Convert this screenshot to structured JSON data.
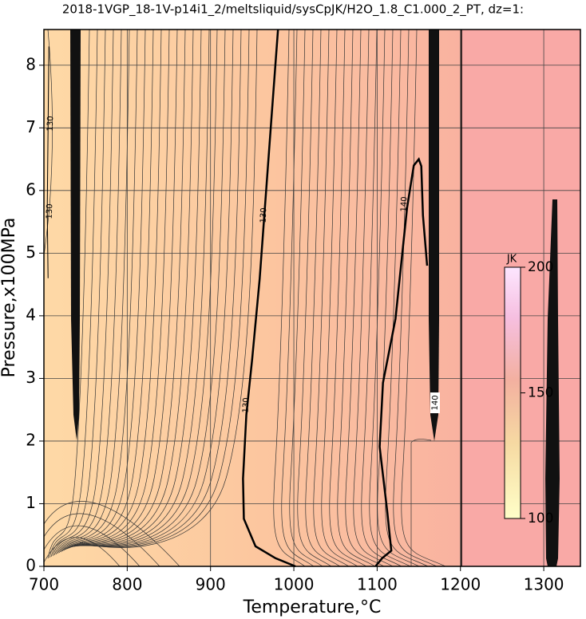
{
  "chart_data": {
    "type": "contour",
    "title": "2018-1VGP_18-1V-p14i1_2/meltsliquid/sysCpJK/H2O_1.8_C1.000_2_PT, dz=1:",
    "x_label": "Temperature,°C",
    "y_label": "Pressure,x100MPa",
    "xlim": [
      700,
      1344
    ],
    "ylim": [
      0,
      8.57
    ],
    "xticks": [
      700,
      800,
      900,
      1000,
      1100,
      1200,
      1300
    ],
    "yticks": [
      0,
      1,
      2,
      3,
      4,
      5,
      6,
      7,
      8
    ],
    "grid": true,
    "contours": [
      {
        "level": 130,
        "x": [
          981,
          973,
          966,
          959,
          950,
          943,
          939,
          940,
          954,
          978,
          1002
        ],
        "y": [
          8.57,
          7.13,
          5.86,
          4.59,
          3.31,
          2.42,
          1.4,
          0.76,
          0.32,
          0.13,
          0
        ]
      },
      {
        "level": 140,
        "x": [
          1098,
          1106,
          1117,
          1112,
          1103,
          1107,
          1122,
          1131,
          1136,
          1144,
          1150,
          1153,
          1155,
          1160
        ],
        "y": [
          0,
          0.13,
          0.25,
          0.89,
          1.91,
          2.93,
          3.95,
          5.1,
          5.73,
          6.4,
          6.5,
          6.39,
          5.6,
          4.8
        ]
      },
      {
        "level": 130,
        "x": [
          706,
          705,
          704,
          705
        ],
        "y": [
          8.3,
          7,
          5.7,
          4.6
        ]
      }
    ],
    "colorbar": {
      "label": "JK",
      "lim": [
        100,
        200
      ],
      "ticks": [
        100,
        150,
        200
      ]
    }
  }
}
